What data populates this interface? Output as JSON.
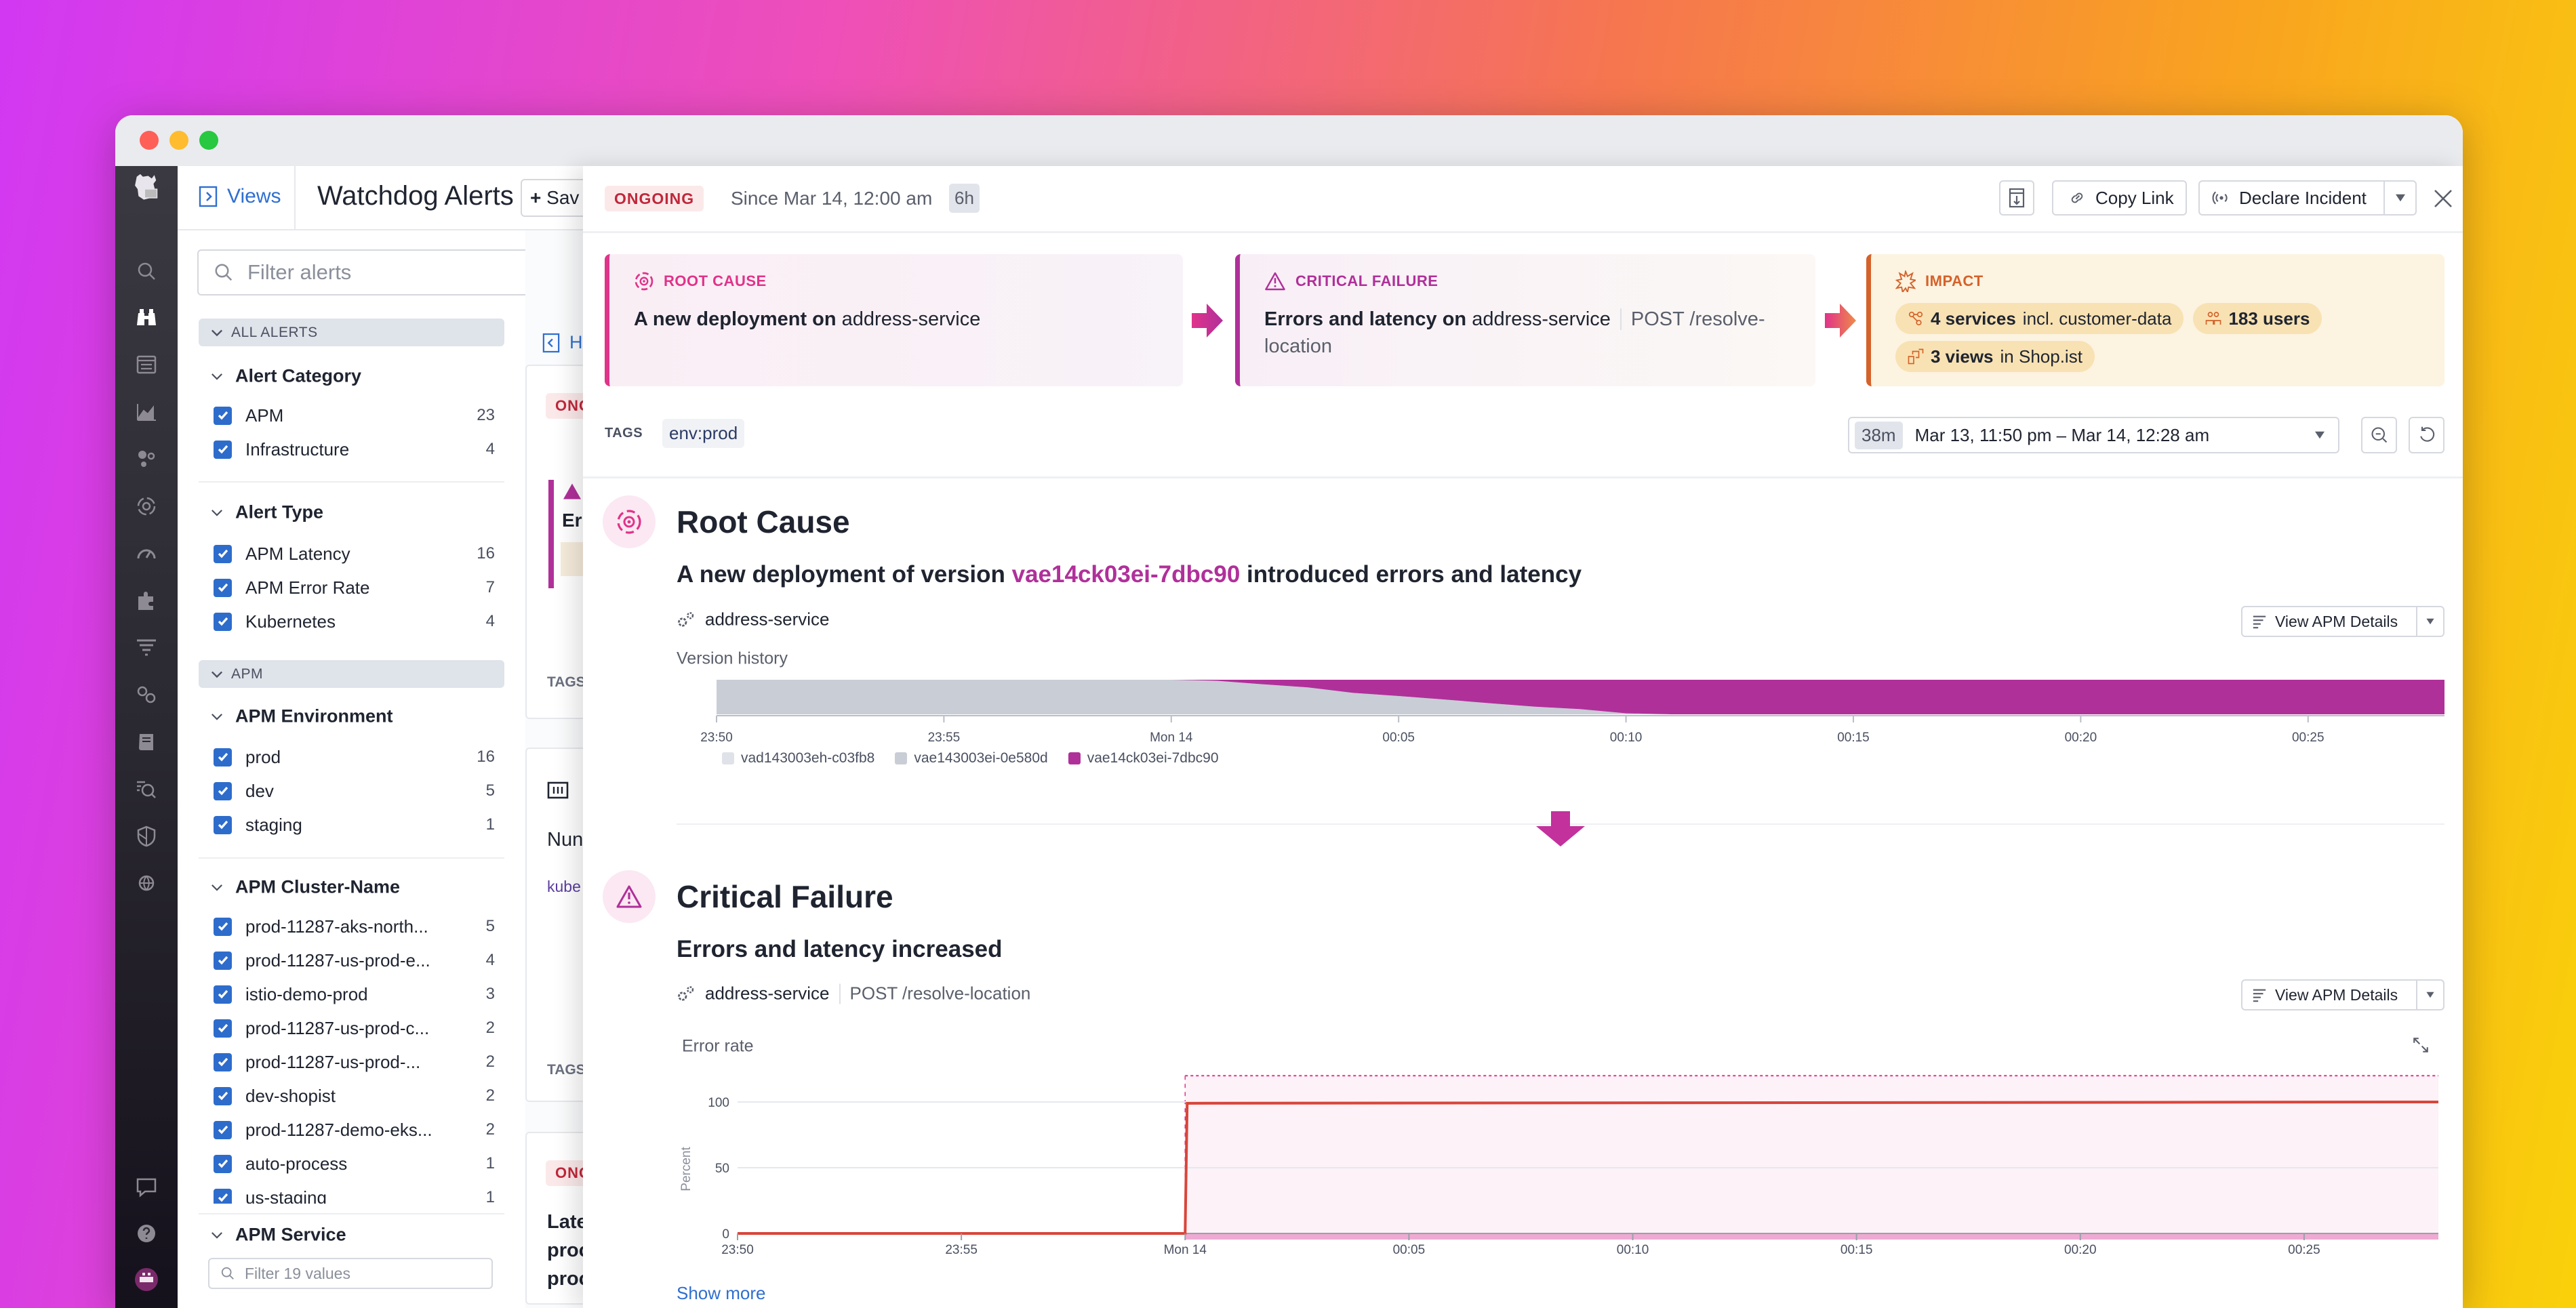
{
  "window": {
    "traffic_lights": [
      "#fe5f57",
      "#febc2e",
      "#28c840"
    ]
  },
  "nav": {
    "top_icons": [
      "datadog-logo-icon",
      "search-icon",
      "binoculars-icon",
      "logs-list-icon",
      "metrics-chart-icon",
      "infrastructure-icon",
      "apm-target-icon",
      "gauge-icon",
      "integrations-puzzle-icon",
      "filter-list-icon",
      "link-icon",
      "notebook-icon",
      "watchdog-search-icon",
      "shield-icon",
      "network-globe-icon"
    ],
    "bottom_icons": [
      "chat-icon",
      "help-icon",
      "user-avatar-icon"
    ]
  },
  "header": {
    "views_label": "Views",
    "title": "Watchdog Alerts",
    "save_label": "Sav"
  },
  "filters": {
    "search_placeholder": "Filter alerts",
    "all_alerts_label": "ALL ALERTS",
    "apm_group_label": "APM",
    "alert_category": {
      "title": "Alert Category",
      "items": [
        {
          "label": "APM",
          "count": "23"
        },
        {
          "label": "Infrastructure",
          "count": "4"
        }
      ]
    },
    "alert_type": {
      "title": "Alert Type",
      "items": [
        {
          "label": "APM Latency",
          "count": "16"
        },
        {
          "label": "APM Error Rate",
          "count": "7"
        },
        {
          "label": "Kubernetes",
          "count": "4"
        }
      ]
    },
    "apm_environment": {
      "title": "APM Environment",
      "items": [
        {
          "label": "prod",
          "count": "16"
        },
        {
          "label": "dev",
          "count": "5"
        },
        {
          "label": "staging",
          "count": "1"
        }
      ]
    },
    "apm_cluster": {
      "title": "APM Cluster-Name",
      "items": [
        {
          "label": "prod-11287-aks-north...",
          "count": "5"
        },
        {
          "label": "prod-11287-us-prod-e...",
          "count": "4"
        },
        {
          "label": "istio-demo-prod",
          "count": "3"
        },
        {
          "label": "prod-11287-us-prod-c...",
          "count": "2"
        },
        {
          "label": "prod-11287-us-prod-...",
          "count": "2"
        },
        {
          "label": "dev-shopist",
          "count": "2"
        },
        {
          "label": "prod-11287-demo-eks...",
          "count": "2"
        },
        {
          "label": "auto-process",
          "count": "1"
        },
        {
          "label": "us-staging",
          "count": "1"
        }
      ]
    },
    "apm_service": {
      "title": "APM Service",
      "placeholder": "Filter 19 values"
    }
  },
  "alert_list": {
    "hide_label": "Hi",
    "cards": [
      {
        "status": "ONG",
        "title": "Er",
        "tags": "TAGS"
      },
      {
        "title": "Nun",
        "tag": "kube",
        "tags": "TAGS"
      },
      {
        "status": "ONG",
        "title_lines": [
          "Late",
          "proc",
          "proc"
        ]
      }
    ]
  },
  "detail": {
    "status": "ONGOING",
    "since": "Since Mar 14, 12:00 am",
    "duration": "6h",
    "copy_link": "Copy Link",
    "declare_incident": "Declare Incident",
    "root_cause_card": {
      "label": "ROOT CAUSE",
      "bold": "A new deployment on",
      "service": "address-service"
    },
    "critical_card": {
      "label": "CRITICAL FAILURE",
      "bold": "Errors and latency on",
      "service": "address-service",
      "endpoint": "POST /resolve-location"
    },
    "impact_card": {
      "label": "IMPACT",
      "services_bold": "4 services",
      "services_rest": "incl. customer-data",
      "users": "183 users",
      "views_bold": "3 views",
      "views_rest": "in Shop.ist"
    },
    "tags_label": "TAGS",
    "tag": "env:prod",
    "time_range": {
      "badge": "38m",
      "value": "Mar 13, 11:50 pm – Mar 14, 12:28 am"
    },
    "root_cause": {
      "title": "Root Cause",
      "sub_pre": "A new deployment of version",
      "sub_version": "vae14ck03ei-7dbc90",
      "sub_post": "introduced errors and latency",
      "service": "address-service",
      "apm_button": "View APM Details",
      "chart_label": "Version history"
    },
    "critical": {
      "title": "Critical Failure",
      "sub": "Errors and latency increased",
      "service": "address-service",
      "endpoint": "POST /resolve-location",
      "apm_button": "View APM Details",
      "chart_label": "Error rate"
    },
    "show_more": "Show more"
  },
  "colors": {
    "accent": "#b0309a",
    "pink": "#e0338a",
    "impact": "#d4622a",
    "error_line": "#d9453a",
    "link": "#2f6fd0"
  },
  "chart_data": [
    {
      "type": "area",
      "title": "Version history",
      "stacked": true,
      "x": [
        "23:50",
        "00:00",
        "00:01",
        "00:02",
        "00:03",
        "00:04",
        "00:05",
        "00:06",
        "00:07",
        "00:08",
        "00:09",
        "00:10",
        "00:11",
        "00:28"
      ],
      "x_ticks": [
        "23:50",
        "23:55",
        "Mon 14",
        "00:05",
        "00:10",
        "00:15",
        "00:20",
        "00:25"
      ],
      "xlim": [
        "23:50",
        "00:28"
      ],
      "ylim": [
        0,
        100
      ],
      "series": [
        {
          "name": "vad143003eh-c03fb8",
          "color": "#dfe2e8",
          "values": [
            0,
            0,
            0,
            0,
            0,
            0,
            0,
            0,
            0,
            0,
            0,
            0,
            0,
            0
          ]
        },
        {
          "name": "vae143003ei-0e580d",
          "color": "#c9cdd6",
          "values": [
            100,
            100,
            97,
            87,
            78,
            62,
            53,
            43,
            32,
            22,
            15,
            3,
            0,
            0
          ]
        },
        {
          "name": "vae14ck03ei-7dbc90",
          "color": "#b0309a",
          "values": [
            0,
            0,
            3,
            13,
            22,
            38,
            47,
            57,
            68,
            78,
            85,
            97,
            100,
            100
          ]
        }
      ],
      "legend": "bottom-left",
      "grid": false
    },
    {
      "type": "line",
      "title": "Error rate",
      "ylabel": "Percent",
      "x": [
        "23:50",
        "00:00",
        "00:00",
        "00:28"
      ],
      "values": [
        0,
        0,
        99,
        100
      ],
      "x_ticks": [
        "23:50",
        "23:55",
        "Mon 14",
        "00:05",
        "00:10",
        "00:15",
        "00:20",
        "00:25"
      ],
      "y_ticks": [
        0,
        50,
        100
      ],
      "xlim": [
        "23:50",
        "00:28"
      ],
      "ylim": [
        0,
        120
      ],
      "highlight": {
        "from": "00:00",
        "to": "00:28",
        "threshold": 120
      },
      "grid": true
    }
  ]
}
